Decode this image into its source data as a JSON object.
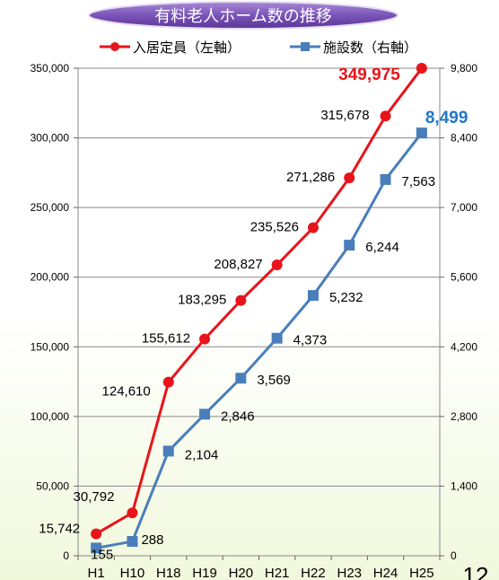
{
  "chart_data": {
    "type": "line",
    "title": "有料老人ホーム数の推移",
    "categories": [
      "H1",
      "H10",
      "H18",
      "H19",
      "H20",
      "H21",
      "H22",
      "H23",
      "H24",
      "H25"
    ],
    "series": [
      {
        "name": "入居定員（左軸）",
        "axis": "left",
        "color": "#e8141b",
        "marker": "circle",
        "values": [
          15742,
          30792,
          124610,
          155612,
          183295,
          208827,
          235526,
          271286,
          315678,
          349975
        ],
        "labels": [
          "15,742",
          "30,792",
          "124,610",
          "155,612",
          "183,295",
          "208,827",
          "235,526",
          "271,286",
          "315,678",
          "349,975"
        ]
      },
      {
        "name": "施設数（右軸）",
        "axis": "right",
        "color": "#4a7ebb",
        "marker": "square",
        "values": [
          155,
          288,
          2104,
          2846,
          3569,
          4373,
          5232,
          6244,
          7563,
          8499
        ],
        "labels": [
          "155",
          "288",
          "2,104",
          "2,846",
          "3,569",
          "4,373",
          "5,232",
          "6,244",
          "7,563",
          "8,499"
        ]
      }
    ],
    "y_left": {
      "ylim": [
        0,
        350000
      ],
      "ticks": [
        0,
        50000,
        100000,
        150000,
        200000,
        250000,
        300000,
        350000
      ],
      "tick_labels": [
        "0",
        "50,000",
        "100,000",
        "150,000",
        "200,000",
        "250,000",
        "300,000",
        "350,000"
      ]
    },
    "y_right": {
      "ylim": [
        0,
        9800
      ],
      "ticks": [
        0,
        1400,
        2800,
        4200,
        5600,
        7000,
        8400,
        9800
      ],
      "tick_labels": [
        "0",
        "1,400",
        "2,800",
        "4,200",
        "5,600",
        "7,000",
        "8,400",
        "9,800"
      ]
    },
    "grid": true,
    "legend_position": "top",
    "highlight_last_label_colors": [
      "#e8141b",
      "#1f78c8"
    ]
  },
  "page_number": "12"
}
